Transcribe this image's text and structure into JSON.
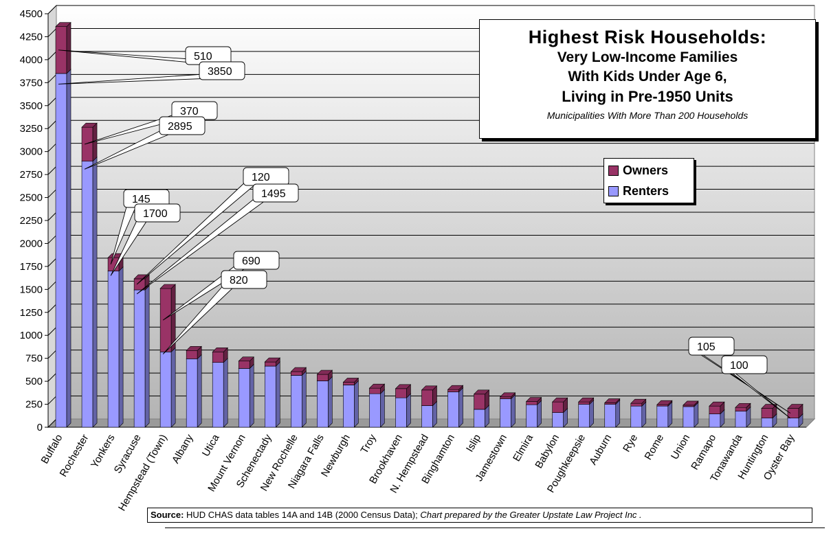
{
  "chart_data": {
    "type": "bar",
    "stacked": true,
    "categories": [
      "Buffalo",
      "Rochester",
      "Yonkers",
      "Syracuse",
      "Hempstead (Town)",
      "Albany",
      "Utica",
      "Mount Vernon",
      "Schenectady",
      "New Rochelle",
      "Niagara Falls",
      "Newburgh",
      "Troy",
      "Brookhaven",
      "N. Hempstead",
      "Binghamton",
      "Islip",
      "Jamestown",
      "Elmira",
      "Babylon",
      "Poughkeepsie",
      "Auburn",
      "Rye",
      "Rome",
      "Union",
      "Ramapo",
      "Tonawanda",
      "Huntington",
      "Oyster Bay"
    ],
    "series": [
      {
        "name": "Renters",
        "color": "#9999ff",
        "values": [
          3850,
          2895,
          1700,
          1495,
          820,
          745,
          705,
          640,
          665,
          565,
          505,
          460,
          365,
          320,
          235,
          385,
          195,
          310,
          245,
          160,
          250,
          250,
          230,
          230,
          225,
          145,
          175,
          100,
          100
        ]
      },
      {
        "name": "Owners",
        "color": "#993366",
        "values": [
          510,
          370,
          145,
          120,
          690,
          90,
          115,
          80,
          45,
          40,
          70,
          30,
          60,
          100,
          170,
          25,
          165,
          20,
          35,
          115,
          25,
          15,
          30,
          15,
          15,
          85,
          40,
          105,
          105
        ]
      }
    ],
    "ylim": [
      0,
      4500
    ],
    "yticks": [
      0,
      250,
      500,
      750,
      1000,
      1250,
      1500,
      1750,
      2000,
      2250,
      2500,
      2750,
      3000,
      3250,
      3500,
      3750,
      4000,
      4250,
      4500
    ],
    "ytick_labels": [
      "0",
      "250",
      "500",
      "750",
      "1000",
      "1250",
      "1500",
      "1750",
      "2000",
      "2250",
      "2500",
      "2750",
      "3000",
      "3250",
      "3500",
      "3750",
      "4000",
      "4250",
      "4500"
    ],
    "grid": true,
    "legend_position": "upper-right",
    "callouts": [
      {
        "category": "Buffalo",
        "series": "Owners",
        "label": "510"
      },
      {
        "category": "Buffalo",
        "series": "Renters",
        "label": "3850"
      },
      {
        "category": "Rochester",
        "series": "Owners",
        "label": "370"
      },
      {
        "category": "Rochester",
        "series": "Renters",
        "label": "2895"
      },
      {
        "category": "Yonkers",
        "series": "Owners",
        "label": "145"
      },
      {
        "category": "Yonkers",
        "series": "Renters",
        "label": "1700"
      },
      {
        "category": "Syracuse",
        "series": "Owners",
        "label": "120"
      },
      {
        "category": "Syracuse",
        "series": "Renters",
        "label": "1495"
      },
      {
        "category": "Hempstead (Town)",
        "series": "Owners",
        "label": "690"
      },
      {
        "category": "Hempstead (Town)",
        "series": "Renters",
        "label": "820"
      },
      {
        "category": "Oyster Bay",
        "series": "Owners",
        "label": "105"
      },
      {
        "category": "Oyster Bay",
        "series": "Renters",
        "label": "100"
      }
    ]
  },
  "title": {
    "line1": "Highest Risk Households:",
    "line2": "Very Low-Income Families",
    "line3": "With Kids Under Age 6,",
    "line4": "Living in Pre-1950 Units",
    "subtitle": "Municipalities With More Than 200 Households"
  },
  "legend": {
    "owners": "Owners",
    "renters": "Renters"
  },
  "source": {
    "label": "Source:",
    "text": " HUD CHAS data tables 14A and 14B   (2000 Census Data);  ",
    "credit": "Chart prepared by the Greater Upstate Law Project Inc ."
  },
  "colors": {
    "owners": "#993366",
    "renters": "#9999ff",
    "plot_bg_light": "#ffffff",
    "plot_bg_dark": "#b8b8b8"
  }
}
